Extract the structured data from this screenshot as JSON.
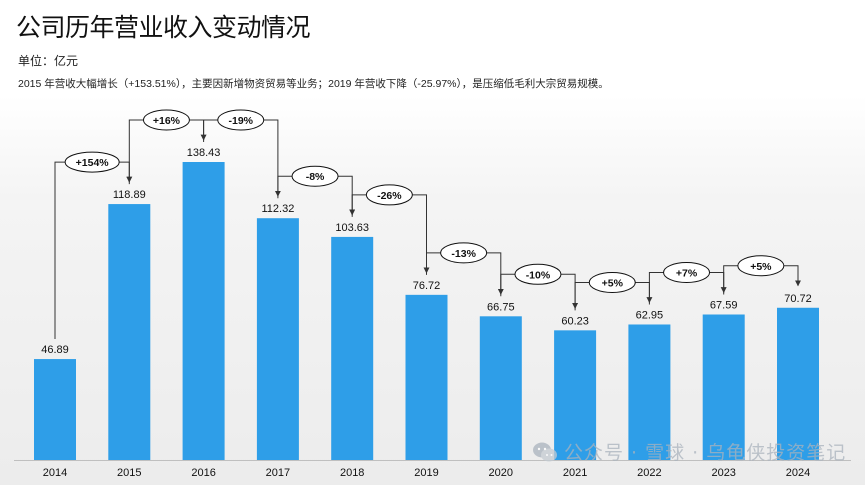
{
  "header": {
    "title": "公司历年营业收入变动情况",
    "unit": "单位：亿元",
    "note": "2015 年营收大幅增长（+153.51%），主要因新增物资贸易等业务；2019 年营收下降（-25.97%），是压缩低毛利大宗贸易规模。"
  },
  "watermark": {
    "text": "公众号 · 雪球 · 乌龟侠投资笔记",
    "icon": "wechat-icon"
  },
  "colors": {
    "bar": "#2e9ee8",
    "axis": "#bfbfbf",
    "connector": "#333333"
  },
  "chart_data": {
    "type": "bar",
    "categories": [
      "2014",
      "2015",
      "2016",
      "2017",
      "2018",
      "2019",
      "2020",
      "2021",
      "2022",
      "2023",
      "2024"
    ],
    "values": [
      46.89,
      118.89,
      138.43,
      112.32,
      103.63,
      76.72,
      66.75,
      60.23,
      62.95,
      67.59,
      70.72
    ],
    "value_labels": [
      "46.89",
      "118.89",
      "138.43",
      "112.32",
      "103.63",
      "76.72",
      "66.75",
      "60.23",
      "62.95",
      "67.59",
      "70.72"
    ],
    "changes": [
      "+154%",
      "+16%",
      "-19%",
      "-8%",
      "-26%",
      "-13%",
      "-10%",
      "+5%",
      "+7%",
      "+5%"
    ],
    "title": "公司历年营业收入变动情况",
    "xlabel": "",
    "ylabel": "",
    "ylim": [
      0,
      150
    ],
    "grid": false,
    "legend": "none"
  }
}
